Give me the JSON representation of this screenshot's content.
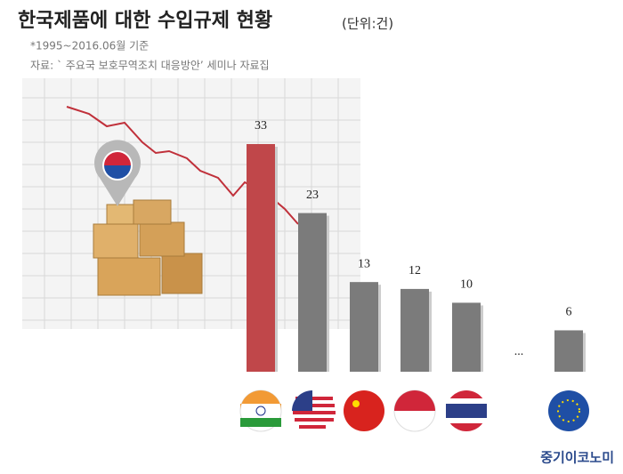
{
  "title": "한국제품에 대한 수입규제 현황",
  "unit": "(단위:건)",
  "notes": [
    "*1995~2016.06월 기준",
    "자료: ` 주요국 보호무역조치 대응방안’ 세미나 자료집"
  ],
  "brand": "중기이코노미",
  "chart_data": {
    "type": "bar",
    "categories": [
      null,
      null,
      null,
      null,
      null,
      null
    ],
    "values": [
      33,
      23,
      13,
      12,
      10,
      6
    ],
    "colors": [
      "#c0474a",
      "#7b7b7b",
      "#7b7b7b",
      "#7b7b7b",
      "#7b7b7b",
      "#7b7b7b"
    ],
    "ellipsis": "..."
  }
}
